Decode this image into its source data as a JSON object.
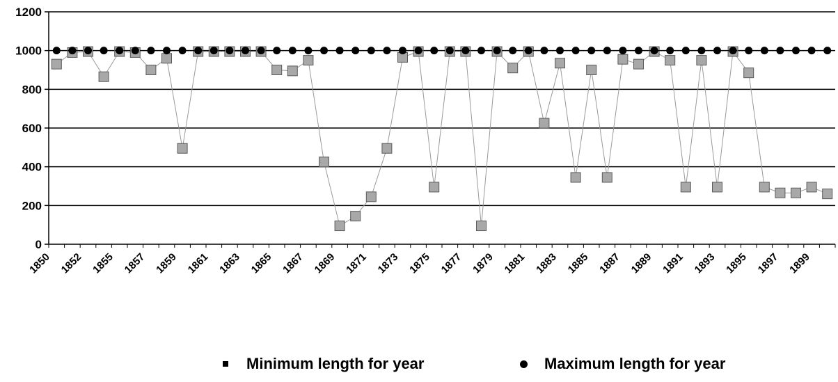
{
  "chart_data": {
    "type": "line",
    "title": "",
    "xlabel": "",
    "ylabel": "",
    "ylim": [
      0,
      1200
    ],
    "yticks": [
      "0",
      "200",
      "400",
      "600",
      "800",
      "1000",
      "1200"
    ],
    "xtick_labels": [
      "1850",
      "1852",
      "1855",
      "1857",
      "1859",
      "1861",
      "1863",
      "1865",
      "1867",
      "1869",
      "1871",
      "1873",
      "1875",
      "1877",
      "1879",
      "1881",
      "1883",
      "1885",
      "1887",
      "1889",
      "1891",
      "1893",
      "1895",
      "1897",
      "1899"
    ],
    "grid": true,
    "legend_position": "bottom",
    "series": [
      {
        "name": "Minimum length for year",
        "marker": "square",
        "color": "#a0a0a0",
        "values": [
          930,
          990,
          995,
          865,
          995,
          990,
          900,
          960,
          495,
          995,
          995,
          995,
          995,
          995,
          900,
          895,
          950,
          425,
          95,
          145,
          245,
          495,
          965,
          995,
          295,
          995,
          995,
          95,
          995,
          910,
          995,
          625,
          935,
          345,
          900,
          345,
          955,
          930,
          995,
          950,
          295,
          950,
          295,
          995,
          885,
          295,
          265,
          265,
          295,
          260
        ]
      },
      {
        "name": "Maximum length for year",
        "marker": "circle",
        "color": "#000000",
        "values": [
          1000,
          1000,
          1000,
          1000,
          1000,
          1000,
          1000,
          1000,
          1000,
          1000,
          1000,
          1000,
          1000,
          1000,
          1000,
          1000,
          1000,
          1000,
          1000,
          1000,
          1000,
          1000,
          1000,
          1000,
          1000,
          1000,
          1000,
          1000,
          1000,
          1000,
          1000,
          1000,
          1000,
          1000,
          1000,
          1000,
          1000,
          1000,
          1000,
          1000,
          1000,
          1000,
          1000,
          1000,
          1000,
          1000,
          1000,
          1000,
          1000,
          1000
        ]
      }
    ]
  }
}
